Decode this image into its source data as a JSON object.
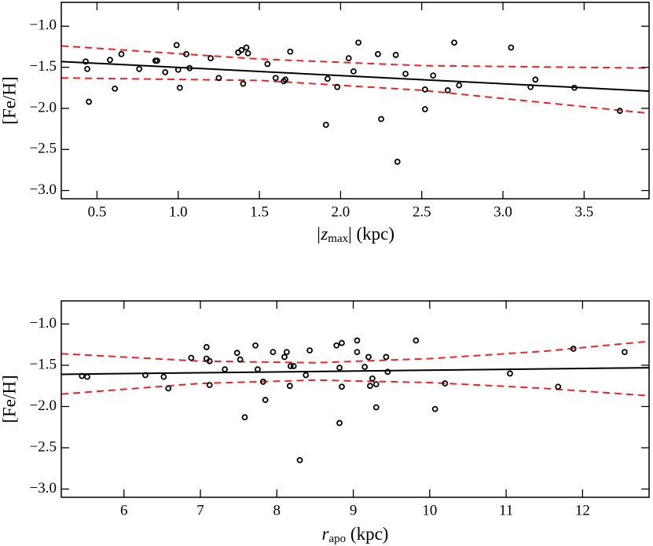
{
  "chart_data": [
    {
      "type": "scatter",
      "xlabel": [
        "|z",
        "max",
        "| (kpc)"
      ],
      "ylabel": "[Fe/H]",
      "xlim": [
        0.28,
        3.9
      ],
      "ylim": [
        -3.1,
        -0.71
      ],
      "xticks": [
        0.5,
        {
          "value": 1,
          "label": "1.0"
        },
        1.5,
        {
          "value": 2,
          "label": "2.0"
        },
        2.5,
        {
          "value": 3,
          "label": "3.0"
        },
        3.5
      ],
      "yticks": [
        {
          "value": -1,
          "label": "−1.0"
        },
        {
          "value": -1.5,
          "label": "−1.5"
        },
        {
          "value": -2,
          "label": "−2.0"
        },
        {
          "value": -2.5,
          "label": "−2.5"
        },
        {
          "value": -3,
          "label": "−3.0"
        }
      ],
      "series": [
        {
          "color": "#000000",
          "x": [
            0.43,
            0.44,
            0.45,
            0.58,
            0.61,
            0.65,
            0.86,
            0.87,
            0.76,
            0.92,
            0.99,
            1.0,
            1.01,
            1.05,
            1.07,
            1.2,
            1.25,
            1.37,
            1.39,
            1.4,
            1.42,
            1.43,
            1.55,
            1.6,
            1.65,
            1.66,
            1.69,
            1.91,
            1.92,
            1.98,
            2.05,
            2.08,
            2.11,
            2.23,
            2.25,
            2.34,
            2.35,
            2.4,
            2.52,
            2.52,
            2.57,
            2.66,
            2.7,
            2.73,
            3.05,
            3.17,
            3.2,
            3.44,
            3.72
          ],
          "values": [
            -1.43,
            -1.52,
            -1.92,
            -1.41,
            -1.76,
            -1.34,
            -1.42,
            -1.42,
            -1.52,
            -1.56,
            -1.23,
            -1.53,
            -1.75,
            -1.34,
            -1.51,
            -1.39,
            -1.63,
            -1.32,
            -1.29,
            -1.7,
            -1.26,
            -1.33,
            -1.46,
            -1.63,
            -1.67,
            -1.65,
            -1.31,
            -2.2,
            -1.64,
            -1.74,
            -1.39,
            -1.55,
            -1.2,
            -1.34,
            -2.13,
            -1.35,
            -2.65,
            -1.58,
            -2.01,
            -1.77,
            -1.6,
            -1.78,
            -1.2,
            -1.72,
            -1.26,
            -1.74,
            -1.65,
            -1.75,
            -2.03
          ]
        }
      ],
      "lines": [
        {
          "color": "#000000",
          "dashed": false,
          "x": [
            0.28,
            3.9
          ],
          "values": [
            -1.43,
            -1.79
          ]
        },
        {
          "color": "#ee2222",
          "dashed": true,
          "x": [
            0.28,
            1.5,
            2.5,
            3.9
          ],
          "values": [
            -1.24,
            -1.4,
            -1.48,
            -1.51
          ]
        },
        {
          "color": "#ee2222",
          "dashed": true,
          "x": [
            0.28,
            1.5,
            2.5,
            3.9
          ],
          "values": [
            -1.63,
            -1.66,
            -1.78,
            -2.06
          ]
        }
      ]
    },
    {
      "type": "scatter",
      "xlabel": [
        "r",
        "apo",
        " (kpc)"
      ],
      "ylabel": "[Fe/H]",
      "xlim": [
        5.18,
        12.87
      ],
      "ylim": [
        -3.1,
        -0.72
      ],
      "xticks": [
        6,
        7,
        8,
        9,
        10,
        11,
        12
      ],
      "yticks": [
        {
          "value": -1,
          "label": "−1.0"
        },
        {
          "value": -1.5,
          "label": "−1.5"
        },
        {
          "value": -2,
          "label": "−2.0"
        },
        {
          "value": -2.5,
          "label": "−2.5"
        },
        {
          "value": -3,
          "label": "−3.0"
        }
      ],
      "series": [
        {
          "color": "#000000",
          "x": [
            5.45,
            5.52,
            6.28,
            6.52,
            6.58,
            6.88,
            7.08,
            7.08,
            7.12,
            7.12,
            7.32,
            7.48,
            7.52,
            7.58,
            7.72,
            7.75,
            7.82,
            7.85,
            7.95,
            8.1,
            8.13,
            8.17,
            8.18,
            8.22,
            8.3,
            8.38,
            8.43,
            8.78,
            8.82,
            8.82,
            8.85,
            8.85,
            9.05,
            9.05,
            9.15,
            9.2,
            9.22,
            9.25,
            9.3,
            9.3,
            9.43,
            9.45,
            9.82,
            10.07,
            10.2,
            11.05,
            11.68,
            11.88,
            12.55
          ],
          "values": [
            -1.63,
            -1.64,
            -1.62,
            -1.64,
            -1.78,
            -1.41,
            -1.28,
            -1.42,
            -1.45,
            -1.74,
            -1.55,
            -1.35,
            -1.43,
            -2.13,
            -1.26,
            -1.55,
            -1.7,
            -1.92,
            -1.34,
            -1.4,
            -1.34,
            -1.75,
            -1.51,
            -1.51,
            -2.65,
            -1.62,
            -1.32,
            -1.26,
            -1.53,
            -2.2,
            -1.23,
            -1.76,
            -1.2,
            -1.34,
            -1.52,
            -1.4,
            -1.75,
            -1.66,
            -2.01,
            -1.73,
            -1.4,
            -1.58,
            -1.2,
            -2.03,
            -1.72,
            -1.6,
            -1.76,
            -1.3,
            -1.34
          ]
        }
      ],
      "lines": [
        {
          "color": "#000000",
          "dashed": false,
          "x": [
            5.18,
            12.87
          ],
          "values": [
            -1.61,
            -1.53
          ]
        },
        {
          "color": "#ee2222",
          "dashed": true,
          "x": [
            5.18,
            7,
            8.5,
            10,
            11.5,
            12.87
          ],
          "values": [
            -1.36,
            -1.45,
            -1.47,
            -1.42,
            -1.33,
            -1.21
          ]
        },
        {
          "color": "#ee2222",
          "dashed": true,
          "x": [
            5.18,
            7,
            8.5,
            10,
            11.5,
            12.87
          ],
          "values": [
            -1.85,
            -1.72,
            -1.68,
            -1.71,
            -1.78,
            -1.87
          ]
        }
      ]
    }
  ]
}
